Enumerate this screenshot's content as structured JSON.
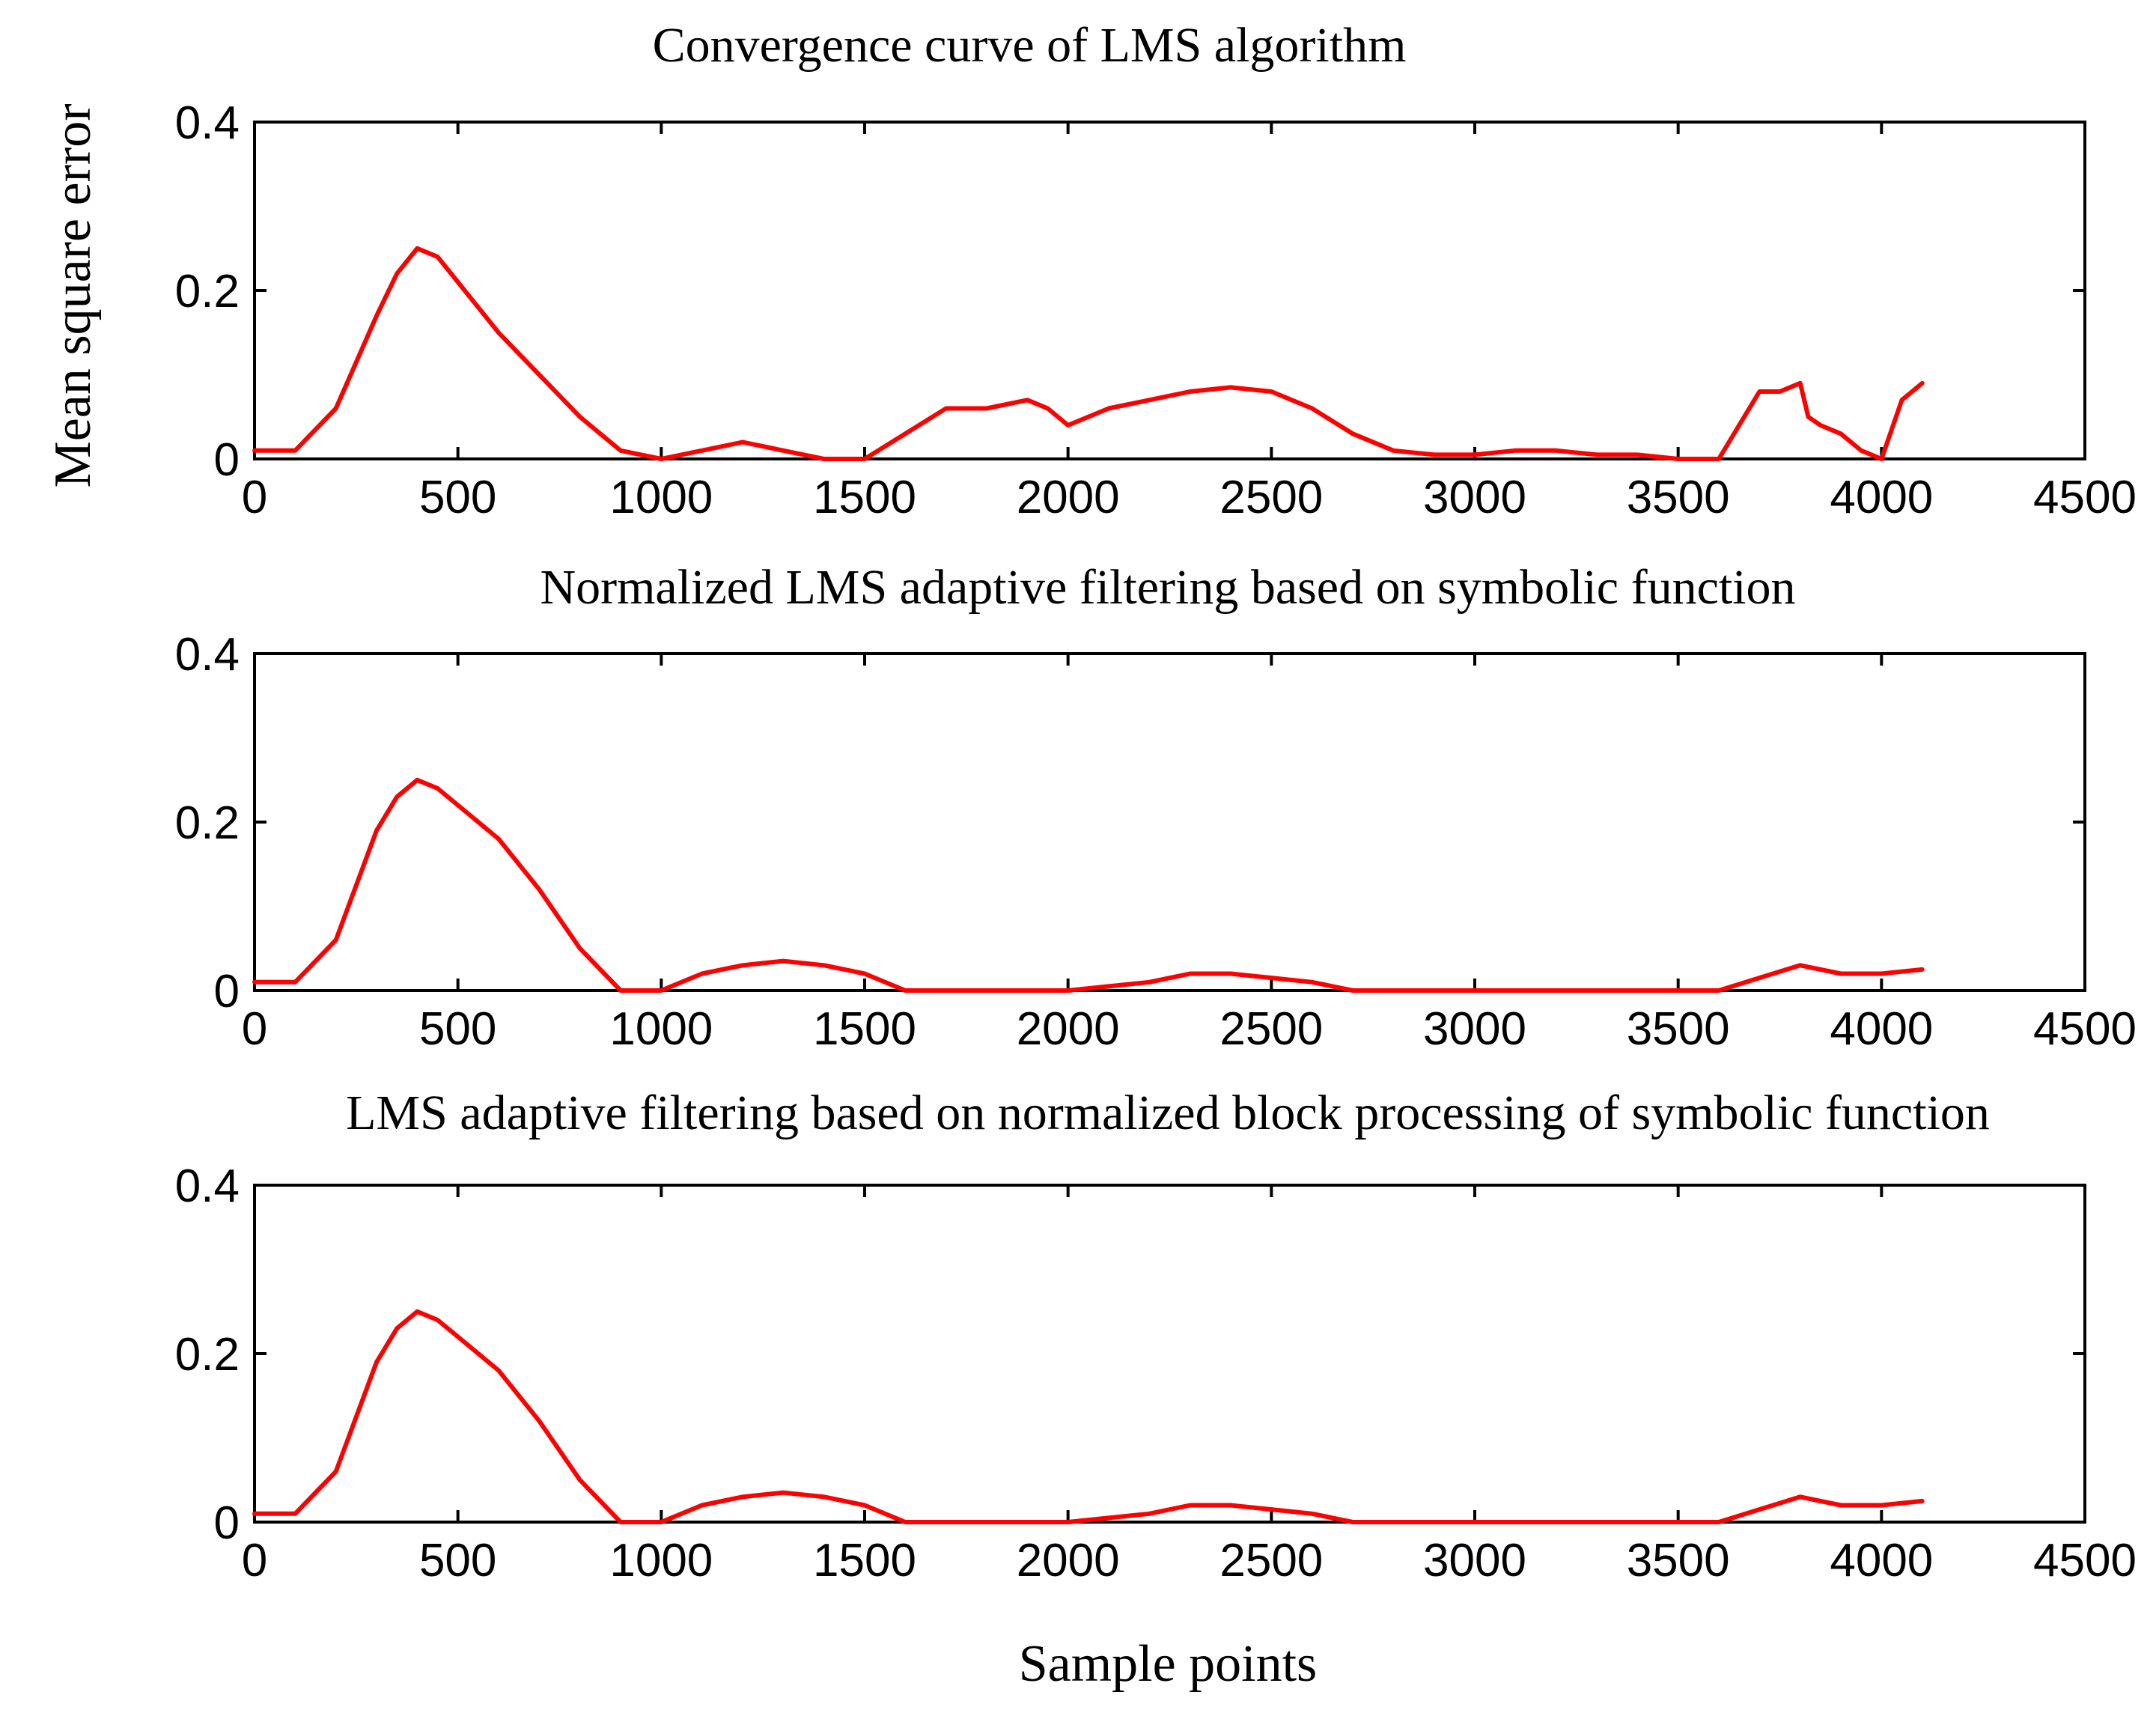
{
  "chart_data": [
    {
      "type": "line",
      "title": "Convergence curve of LMS algorithm",
      "xlabel": "",
      "ylabel": "Mean square error",
      "xlim": [
        0,
        4500
      ],
      "ylim": [
        0,
        0.4
      ],
      "xticks": [
        "0",
        "500",
        "1000",
        "1500",
        "2000",
        "2500",
        "3000",
        "3500",
        "4000",
        "4500"
      ],
      "yticks": [
        "0",
        "0.2",
        "0.4"
      ],
      "grid": false,
      "series": [
        {
          "name": "MSE",
          "color": "#ff0000",
          "x": [
            0,
            100,
            200,
            300,
            350,
            400,
            450,
            500,
            600,
            700,
            800,
            900,
            1000,
            1100,
            1200,
            1300,
            1400,
            1500,
            1600,
            1700,
            1800,
            1900,
            1950,
            2000,
            2100,
            2200,
            2300,
            2400,
            2500,
            2600,
            2700,
            2800,
            2900,
            3000,
            3100,
            3200,
            3300,
            3400,
            3500,
            3600,
            3700,
            3750,
            3800,
            3820,
            3850,
            3900,
            3950,
            4000,
            4050,
            4100
          ],
          "y": [
            0.01,
            0.01,
            0.06,
            0.17,
            0.22,
            0.25,
            0.24,
            0.21,
            0.15,
            0.1,
            0.05,
            0.01,
            0.0,
            0.01,
            0.02,
            0.01,
            0.0,
            0.0,
            0.03,
            0.06,
            0.06,
            0.07,
            0.06,
            0.04,
            0.06,
            0.07,
            0.08,
            0.085,
            0.08,
            0.06,
            0.03,
            0.01,
            0.005,
            0.005,
            0.01,
            0.01,
            0.005,
            0.005,
            0.0,
            0.0,
            0.08,
            0.08,
            0.09,
            0.05,
            0.04,
            0.03,
            0.01,
            0.0,
            0.07,
            0.09
          ]
        }
      ]
    },
    {
      "type": "line",
      "title": "Normalized LMS adaptive filtering based on symbolic function",
      "xlabel": "",
      "ylabel": "",
      "xlim": [
        0,
        4500
      ],
      "ylim": [
        0,
        0.4
      ],
      "xticks": [
        "0",
        "500",
        "1000",
        "1500",
        "2000",
        "2500",
        "3000",
        "3500",
        "4000",
        "4500"
      ],
      "yticks": [
        "0",
        "0.2",
        "0.4"
      ],
      "grid": false,
      "series": [
        {
          "name": "MSE",
          "color": "#ff0000",
          "x": [
            0,
            100,
            200,
            300,
            350,
            400,
            450,
            500,
            600,
            700,
            800,
            900,
            1000,
            1100,
            1200,
            1300,
            1400,
            1500,
            1600,
            1700,
            1800,
            1900,
            2000,
            2100,
            2200,
            2300,
            2400,
            2500,
            2600,
            2700,
            2800,
            2900,
            3000,
            3100,
            3200,
            3300,
            3400,
            3500,
            3600,
            3700,
            3800,
            3900,
            4000,
            4100
          ],
          "y": [
            0.01,
            0.01,
            0.06,
            0.19,
            0.23,
            0.25,
            0.24,
            0.22,
            0.18,
            0.12,
            0.05,
            0.0,
            0.0,
            0.02,
            0.03,
            0.035,
            0.03,
            0.02,
            0.0,
            0.0,
            0.0,
            0.0,
            0.0,
            0.005,
            0.01,
            0.02,
            0.02,
            0.015,
            0.01,
            0.0,
            0.0,
            0.0,
            0.0,
            0.0,
            0.0,
            0.0,
            0.0,
            0.0,
            0.0,
            0.015,
            0.03,
            0.02,
            0.02,
            0.025
          ]
        }
      ]
    },
    {
      "type": "line",
      "title": "LMS adaptive filtering based on normalized block processing of symbolic function",
      "xlabel": "Sample points",
      "ylabel": "",
      "xlim": [
        0,
        4500
      ],
      "ylim": [
        0,
        0.4
      ],
      "xticks": [
        "0",
        "500",
        "1000",
        "1500",
        "2000",
        "2500",
        "3000",
        "3500",
        "4000",
        "4500"
      ],
      "yticks": [
        "0",
        "0.2",
        "0.4"
      ],
      "grid": false,
      "series": [
        {
          "name": "MSE",
          "color": "#ff0000",
          "x": [
            0,
            100,
            200,
            300,
            350,
            400,
            450,
            500,
            600,
            700,
            800,
            900,
            1000,
            1100,
            1200,
            1300,
            1400,
            1500,
            1600,
            1700,
            1800,
            1900,
            2000,
            2100,
            2200,
            2300,
            2400,
            2500,
            2600,
            2700,
            2800,
            2900,
            3000,
            3100,
            3200,
            3300,
            3400,
            3500,
            3600,
            3700,
            3800,
            3900,
            4000,
            4100
          ],
          "y": [
            0.01,
            0.01,
            0.06,
            0.19,
            0.23,
            0.25,
            0.24,
            0.22,
            0.18,
            0.12,
            0.05,
            0.0,
            0.0,
            0.02,
            0.03,
            0.035,
            0.03,
            0.02,
            0.0,
            0.0,
            0.0,
            0.0,
            0.0,
            0.005,
            0.01,
            0.02,
            0.02,
            0.015,
            0.01,
            0.0,
            0.0,
            0.0,
            0.0,
            0.0,
            0.0,
            0.0,
            0.0,
            0.0,
            0.0,
            0.015,
            0.03,
            0.02,
            0.02,
            0.025
          ]
        }
      ]
    }
  ]
}
